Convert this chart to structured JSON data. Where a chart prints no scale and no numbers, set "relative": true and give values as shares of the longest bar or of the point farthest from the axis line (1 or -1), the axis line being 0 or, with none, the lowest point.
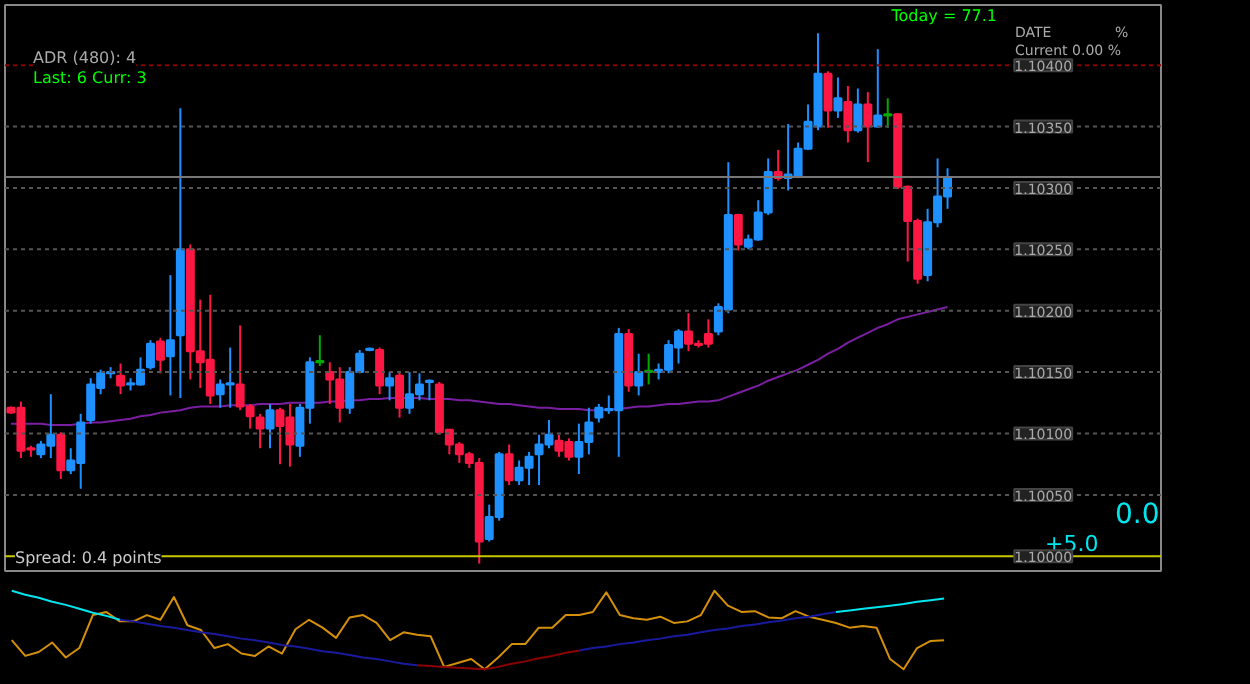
{
  "chart_data": [
    {
      "type": "candlestick",
      "categories": [
        null,
        null,
        null,
        null,
        null,
        null,
        null,
        null,
        null,
        null,
        null,
        null,
        null,
        null,
        null,
        null,
        null,
        null,
        null,
        null,
        null,
        null,
        null,
        null,
        null,
        null,
        null,
        null,
        null,
        null,
        null,
        null,
        null,
        null,
        null,
        null,
        null,
        null,
        null,
        null,
        null,
        null,
        null,
        null,
        null,
        null,
        null,
        null,
        null,
        null,
        null,
        null,
        null,
        null,
        null,
        null,
        null,
        null,
        null,
        null,
        null,
        null,
        null,
        null,
        null,
        null,
        null,
        null,
        null,
        null,
        null,
        null,
        null,
        null,
        null,
        null,
        null,
        null,
        null,
        null,
        null,
        null,
        null,
        null,
        null,
        null,
        null,
        null,
        null,
        null,
        null,
        null,
        null,
        null,
        null
      ],
      "ohlc": [
        [
          1.10121,
          1.10122,
          1.10116,
          1.10117
        ],
        [
          1.10121,
          1.10126,
          1.1008,
          1.10086
        ],
        [
          1.10088,
          1.1009,
          1.10081,
          1.10087
        ],
        [
          1.10083,
          1.10094,
          1.1008,
          1.10091
        ],
        [
          1.1009,
          1.10132,
          1.1008,
          1.10099
        ],
        [
          1.10099,
          1.10101,
          1.10063,
          1.1007
        ],
        [
          1.1007,
          1.10088,
          1.10067,
          1.10078
        ],
        [
          1.10076,
          1.10116,
          1.10055,
          1.10109
        ],
        [
          1.10111,
          1.10145,
          1.10108,
          1.1014
        ],
        [
          1.10137,
          1.10152,
          1.10132,
          1.10149
        ],
        [
          1.10149,
          1.10154,
          1.10145,
          1.1015
        ],
        [
          1.10147,
          1.10157,
          1.10132,
          1.10139
        ],
        [
          1.1014,
          1.10145,
          1.10135,
          1.10141
        ],
        [
          1.1014,
          1.10162,
          1.10139,
          1.10152
        ],
        [
          1.10154,
          1.10176,
          1.10152,
          1.10173
        ],
        [
          1.10175,
          1.10178,
          1.10149,
          1.1016
        ],
        [
          1.10163,
          1.10229,
          1.10131,
          1.10176
        ],
        [
          1.1018,
          1.10365,
          1.10129,
          1.1025
        ],
        [
          1.1025,
          1.10254,
          1.10144,
          1.10167
        ],
        [
          1.10167,
          1.10209,
          1.10137,
          1.10158
        ],
        [
          1.1016,
          1.10213,
          1.10124,
          1.10131
        ],
        [
          1.10132,
          1.10144,
          1.10121,
          1.1014
        ],
        [
          1.1014,
          1.1017,
          1.10121,
          1.10141
        ],
        [
          1.1014,
          1.10188,
          1.10119,
          1.10122
        ],
        [
          1.10122,
          1.10124,
          1.10104,
          1.10114
        ],
        [
          1.10113,
          1.10116,
          1.10088,
          1.10104
        ],
        [
          1.10104,
          1.10124,
          1.10088,
          1.10119
        ],
        [
          1.10119,
          1.10121,
          1.10075,
          1.10106
        ],
        [
          1.10113,
          1.10124,
          1.10073,
          1.10091
        ],
        [
          1.1009,
          1.10124,
          1.10081,
          1.10121
        ],
        [
          1.10121,
          1.10162,
          1.10108,
          1.10158
        ],
        [
          1.10158,
          1.1018,
          1.10155,
          1.10159
        ],
        [
          1.1015,
          1.10158,
          1.10124,
          1.10144
        ],
        [
          1.10144,
          1.10154,
          1.10109,
          1.10121
        ],
        [
          1.10121,
          1.10154,
          1.10116,
          1.1015
        ],
        [
          1.1015,
          1.10168,
          1.10149,
          1.10165
        ],
        [
          1.10168,
          1.1017,
          1.10167,
          1.10169
        ],
        [
          1.10168,
          1.1017,
          1.10132,
          1.10139
        ],
        [
          1.10139,
          1.1015,
          1.10127,
          1.10145
        ],
        [
          1.10147,
          1.1015,
          1.10113,
          1.10121
        ],
        [
          1.10121,
          1.1015,
          1.10116,
          1.10132
        ],
        [
          1.10132,
          1.10149,
          1.10127,
          1.1014
        ],
        [
          1.10142,
          1.10144,
          1.10127,
          1.10143
        ],
        [
          1.1014,
          1.10142,
          1.10099,
          1.10101
        ],
        [
          1.10103,
          1.10103,
          1.10083,
          1.10091
        ],
        [
          1.10091,
          1.10093,
          1.10076,
          1.10083
        ],
        [
          1.10083,
          1.10085,
          1.10072,
          1.10076
        ],
        [
          1.10076,
          1.1008,
          1.09994,
          1.10012
        ],
        [
          1.10014,
          1.10042,
          1.10012,
          1.10032
        ],
        [
          1.10032,
          1.10085,
          1.10029,
          1.10083
        ],
        [
          1.10083,
          1.10091,
          1.10058,
          1.10062
        ],
        [
          1.10062,
          1.10078,
          1.10058,
          1.10072
        ],
        [
          1.10072,
          1.10085,
          1.10058,
          1.10081
        ],
        [
          1.10083,
          1.10099,
          1.10058,
          1.10091
        ],
        [
          1.10091,
          1.10111,
          1.10088,
          1.10099
        ],
        [
          1.10094,
          1.10099,
          1.10081,
          1.10086
        ],
        [
          1.10093,
          1.10096,
          1.10078,
          1.10081
        ],
        [
          1.10081,
          1.10108,
          1.10067,
          1.10093
        ],
        [
          1.10093,
          1.10121,
          1.10083,
          1.10109
        ],
        [
          1.10113,
          1.10124,
          1.10109,
          1.10121
        ],
        [
          1.10119,
          1.10131,
          1.10116,
          1.1012
        ],
        [
          1.10119,
          1.10186,
          1.10081,
          1.10181
        ],
        [
          1.10181,
          1.10185,
          1.10134,
          1.10139
        ],
        [
          1.10139,
          1.10165,
          1.10131,
          1.1015
        ],
        [
          1.1015,
          1.10165,
          1.1014,
          1.10151
        ],
        [
          1.1015,
          1.10157,
          1.10144,
          1.10152
        ],
        [
          1.10152,
          1.10176,
          1.10149,
          1.10172
        ],
        [
          1.1017,
          1.10185,
          1.10157,
          1.10183
        ],
        [
          1.10183,
          1.10198,
          1.10167,
          1.10173
        ],
        [
          1.10173,
          1.10176,
          1.1017,
          1.10172
        ],
        [
          1.10181,
          1.10193,
          1.1017,
          1.10173
        ],
        [
          1.10183,
          1.10206,
          1.1018,
          1.10203
        ],
        [
          1.10201,
          1.10321,
          1.10198,
          1.10278
        ],
        [
          1.10278,
          1.10279,
          1.10249,
          1.10254
        ],
        [
          1.10252,
          1.10262,
          1.1025,
          1.10258
        ],
        [
          1.10258,
          1.1029,
          1.10257,
          1.1028
        ],
        [
          1.1028,
          1.10324,
          1.10278,
          1.10313
        ],
        [
          1.10313,
          1.10331,
          1.10306,
          1.10308
        ],
        [
          1.10308,
          1.10352,
          1.10298,
          1.10311
        ],
        [
          1.10309,
          1.10337,
          1.10308,
          1.10332
        ],
        [
          1.10332,
          1.10368,
          1.10331,
          1.10354
        ],
        [
          1.1035,
          1.10426,
          1.10347,
          1.10393
        ],
        [
          1.10393,
          1.10395,
          1.10349,
          1.10363
        ],
        [
          1.10363,
          1.1039,
          1.10357,
          1.10373
        ],
        [
          1.1037,
          1.10383,
          1.10337,
          1.10347
        ],
        [
          1.10347,
          1.10381,
          1.10345,
          1.10368
        ],
        [
          1.10368,
          1.10378,
          1.10321,
          1.1035
        ],
        [
          1.1035,
          1.10413,
          1.10349,
          1.10359
        ],
        [
          1.10359,
          1.10373,
          1.10349,
          1.1036
        ],
        [
          1.1036,
          1.10361,
          1.10299,
          1.10301
        ],
        [
          1.10301,
          1.10302,
          1.1024,
          1.10273
        ],
        [
          1.10273,
          1.10275,
          1.10222,
          1.10226
        ],
        [
          1.10229,
          1.10283,
          1.10224,
          1.10272
        ],
        [
          1.10272,
          1.10324,
          1.10268,
          1.10293
        ],
        [
          1.10293,
          1.10316,
          1.10283,
          1.10309
        ]
      ],
      "colors": [
        "#ff1744",
        "#ff1744",
        "#ff1744",
        "#1e90ff",
        "#1e90ff",
        "#ff1744",
        "#1e90ff",
        "#1e90ff",
        "#1e90ff",
        "#1e90ff",
        "#1e90ff",
        "#ff1744",
        "#1e90ff",
        "#1e90ff",
        "#1e90ff",
        "#ff1744",
        "#1e90ff",
        "#1e90ff",
        "#ff1744",
        "#ff1744",
        "#ff1744",
        "#1e90ff",
        "#1e90ff",
        "#ff1744",
        "#ff1744",
        "#ff1744",
        "#1e90ff",
        "#ff1744",
        "#ff1744",
        "#1e90ff",
        "#1e90ff",
        "#00aa00",
        "#ff1744",
        "#ff1744",
        "#1e90ff",
        "#1e90ff",
        "#1e90ff",
        "#ff1744",
        "#1e90ff",
        "#ff1744",
        "#1e90ff",
        "#1e90ff",
        "#1e90ff",
        "#ff1744",
        "#ff1744",
        "#ff1744",
        "#ff1744",
        "#ff1744",
        "#1e90ff",
        "#1e90ff",
        "#ff1744",
        "#1e90ff",
        "#1e90ff",
        "#1e90ff",
        "#1e90ff",
        "#ff1744",
        "#ff1744",
        "#1e90ff",
        "#1e90ff",
        "#1e90ff",
        "#1e90ff",
        "#1e90ff",
        "#ff1744",
        "#1e90ff",
        "#00aa00",
        "#1e90ff",
        "#1e90ff",
        "#1e90ff",
        "#ff1744",
        "#ff1744",
        "#ff1744",
        "#1e90ff",
        "#1e90ff",
        "#ff1744",
        "#1e90ff",
        "#1e90ff",
        "#1e90ff",
        "#ff1744",
        "#1e90ff",
        "#1e90ff",
        "#1e90ff",
        "#1e90ff",
        "#ff1744",
        "#1e90ff",
        "#ff1744",
        "#1e90ff",
        "#ff1744",
        "#1e90ff",
        "#00aa00",
        "#ff1744",
        "#ff1744",
        "#ff1744",
        "#1e90ff",
        "#1e90ff",
        "#1e90ff"
      ],
      "series": [
        {
          "type": "line",
          "color": "#7b1fa2",
          "values": [
            1.10108,
            1.10108,
            1.10108,
            1.10108,
            1.10107,
            1.10107,
            1.10107,
            1.10108,
            1.10109,
            1.10109,
            1.1011,
            1.10111,
            1.10112,
            1.10114,
            1.10115,
            1.10117,
            1.10118,
            1.10119,
            1.10121,
            1.10122,
            1.10122,
            1.10122,
            1.10123,
            1.10123,
            1.10123,
            1.10124,
            1.10124,
            1.10124,
            1.10125,
            1.10125,
            1.10125,
            1.10125,
            1.10126,
            1.10126,
            1.10127,
            1.10127,
            1.10128,
            1.10128,
            1.10129,
            1.10129,
            1.10129,
            1.10129,
            1.10128,
            1.10128,
            1.10128,
            1.10127,
            1.10127,
            1.10126,
            1.10125,
            1.10124,
            1.10124,
            1.10123,
            1.10122,
            1.10121,
            1.10121,
            1.1012,
            1.1012,
            1.1012,
            1.10119,
            1.10119,
            1.1012,
            1.1012,
            1.10121,
            1.10122,
            1.10122,
            1.10123,
            1.10124,
            1.10124,
            1.10125,
            1.10126,
            1.10126,
            1.10127,
            1.1013,
            1.10133,
            1.10136,
            1.10139,
            1.10143,
            1.10146,
            1.10149,
            1.10152,
            1.10156,
            1.1016,
            1.10165,
            1.10169,
            1.10174,
            1.10178,
            1.10182,
            1.10186,
            1.10189,
            1.10193,
            1.10195,
            1.10197,
            1.10199,
            1.10201,
            1.10203
          ]
        }
      ],
      "ylim": [
        1.09988,
        1.10449
      ],
      "tick_labels": false,
      "ref_lines": [
        {
          "axis": "y",
          "value": 1.104,
          "label": "1.10400",
          "color": "#8b0000",
          "line_style": "dotted"
        },
        {
          "axis": "y",
          "value": 1.1035,
          "label": "1.10350",
          "color": "#555555",
          "line_style": "dotted"
        },
        {
          "axis": "y",
          "value": 1.103,
          "label": "1.10300",
          "color": "#555555",
          "line_style": "dotted"
        },
        {
          "axis": "y",
          "value": 1.1025,
          "label": "1.10250",
          "color": "#555555",
          "line_style": "dotted"
        },
        {
          "axis": "y",
          "value": 1.102,
          "label": "1.10200",
          "color": "#555555",
          "line_style": "dotted"
        },
        {
          "axis": "y",
          "value": 1.1015,
          "label": "1.10150",
          "color": "#555555",
          "line_style": "dotted"
        },
        {
          "axis": "y",
          "value": 1.101,
          "label": "1.10100",
          "color": "#555555",
          "line_style": "dotted"
        },
        {
          "axis": "y",
          "value": 1.1005,
          "label": "1.10050",
          "color": "#555555",
          "line_style": "dotted"
        },
        {
          "axis": "y",
          "value": 1.1,
          "label": "1.10000",
          "color": "#c8c800",
          "line_style": "solid"
        },
        {
          "axis": "y",
          "value": 1.10309,
          "label": null,
          "color": "#777777",
          "line_style": "solid"
        }
      ],
      "annotations": [
        "Today = 77.1",
        "ADR (480): 4",
        "Last: 6 Curr: 3",
        "DATE",
        "%",
        "Current 0.00 %",
        "Spread: 0.4 points",
        "0.0",
        "+5.0"
      ]
    },
    {
      "type": "line",
      "relative": true,
      "tick_labels": false,
      "categories": [
        null,
        null,
        null,
        null,
        null,
        null,
        null,
        null,
        null,
        null,
        null,
        null,
        null,
        null,
        null,
        null,
        null,
        null,
        null,
        null,
        null,
        null,
        null,
        null,
        null,
        null,
        null,
        null,
        null,
        null,
        null,
        null,
        null,
        null,
        null,
        null,
        null,
        null,
        null,
        null,
        null,
        null,
        null,
        null,
        null,
        null,
        null,
        null,
        null,
        null,
        null,
        null,
        null,
        null,
        null,
        null,
        null,
        null,
        null,
        null,
        null,
        null,
        null,
        null,
        null,
        null,
        null,
        null,
        null,
        null
      ],
      "series": [
        {
          "color": "#d4900a",
          "values": [
            0.37,
            0.17,
            0.22,
            0.34,
            0.15,
            0.27,
            0.69,
            0.73,
            0.61,
            0.61,
            0.69,
            0.63,
            0.92,
            0.56,
            0.5,
            0.27,
            0.32,
            0.2,
            0.17,
            0.29,
            0.2,
            0.51,
            0.63,
            0.53,
            0.4,
            0.66,
            0.69,
            0.59,
            0.37,
            0.47,
            0.44,
            0.42,
            0.03,
            0.08,
            0.13,
            0,
            0.15,
            0.32,
            0.32,
            0.53,
            0.53,
            0.69,
            0.69,
            0.73,
            0.98,
            0.69,
            0.65,
            0.63,
            0.67,
            0.59,
            0.61,
            0.69,
            1.0,
            0.81,
            0.73,
            0.74,
            0.66,
            0.65,
            0.74,
            0.67,
            0.63,
            0.59,
            0.53,
            0.55,
            0.53,
            0.13,
            0,
            0.27,
            0.36,
            0.37
          ]
        },
        {
          "color": "#00e5ee",
          "values": [
            1.0,
            0.95,
            0.91,
            0.86,
            0.82,
            0.77,
            0.72,
            0.68,
            0.63,
            null,
            null,
            null,
            null,
            null,
            null,
            null,
            null,
            null,
            null,
            null,
            null,
            null,
            null,
            null,
            null,
            null,
            null,
            null,
            null,
            null,
            null,
            null,
            null,
            null,
            null,
            null,
            null,
            null,
            null,
            null,
            null,
            null,
            null,
            null,
            null,
            null,
            null,
            null,
            null,
            null,
            null,
            null,
            null,
            null,
            null,
            null,
            null,
            null,
            null,
            null,
            null,
            null,
            null,
            null,
            null,
            null,
            null,
            null,
            null,
            null
          ]
        },
        {
          "color": "#1a1a9e",
          "values": [
            null,
            null,
            null,
            null,
            null,
            null,
            null,
            null,
            0.63,
            0.61,
            0.58,
            0.55,
            0.53,
            0.5,
            0.47,
            0.45,
            0.42,
            0.39,
            0.37,
            0.34,
            0.31,
            0.29,
            0.26,
            0.23,
            0.21,
            0.18,
            0.15,
            0.13,
            0.1,
            0.07,
            0.05,
            null,
            null,
            null,
            null,
            null,
            null,
            null,
            null,
            null,
            null,
            null,
            null,
            null,
            null,
            null,
            null,
            null,
            null,
            null,
            null,
            null,
            null,
            null,
            null,
            null,
            null,
            null,
            null,
            null,
            null,
            null,
            null,
            null,
            null,
            null,
            null,
            null,
            null,
            null
          ]
        },
        {
          "color": "#8b0000",
          "values": [
            null,
            null,
            null,
            null,
            null,
            null,
            null,
            null,
            null,
            null,
            null,
            null,
            null,
            null,
            null,
            null,
            null,
            null,
            null,
            null,
            null,
            null,
            null,
            null,
            null,
            null,
            null,
            null,
            null,
            null,
            0.05,
            0.04,
            0.03,
            0.02,
            0.01,
            0,
            0.03,
            0.07,
            0.1,
            0.14,
            0.17,
            0.21,
            0.24,
            null,
            null,
            null,
            null,
            null,
            null,
            null,
            null,
            null,
            null,
            null,
            null,
            null,
            null,
            null,
            null,
            null,
            null,
            null,
            null,
            null,
            null,
            null,
            null,
            null,
            null,
            null
          ]
        },
        {
          "color": "#1a1a9e",
          "values": [
            null,
            null,
            null,
            null,
            null,
            null,
            null,
            null,
            null,
            null,
            null,
            null,
            null,
            null,
            null,
            null,
            null,
            null,
            null,
            null,
            null,
            null,
            null,
            null,
            null,
            null,
            null,
            null,
            null,
            null,
            null,
            null,
            null,
            null,
            null,
            null,
            null,
            null,
            null,
            null,
            null,
            null,
            0.24,
            0.27,
            0.29,
            0.32,
            0.34,
            0.37,
            0.39,
            0.42,
            0.44,
            0.47,
            0.5,
            0.52,
            0.55,
            0.57,
            0.6,
            0.62,
            0.65,
            0.67,
            0.7,
            0.73,
            null,
            null,
            null,
            null,
            null,
            null,
            null,
            null
          ]
        },
        {
          "color": "#00e5ee",
          "values": [
            null,
            null,
            null,
            null,
            null,
            null,
            null,
            null,
            null,
            null,
            null,
            null,
            null,
            null,
            null,
            null,
            null,
            null,
            null,
            null,
            null,
            null,
            null,
            null,
            null,
            null,
            null,
            null,
            null,
            null,
            null,
            null,
            null,
            null,
            null,
            null,
            null,
            null,
            null,
            null,
            null,
            null,
            null,
            null,
            null,
            null,
            null,
            null,
            null,
            null,
            null,
            null,
            null,
            null,
            null,
            null,
            null,
            null,
            null,
            null,
            null,
            0.73,
            0.75,
            0.77,
            0.79,
            0.81,
            0.83,
            0.86,
            0.88,
            0.9
          ]
        }
      ]
    }
  ]
}
